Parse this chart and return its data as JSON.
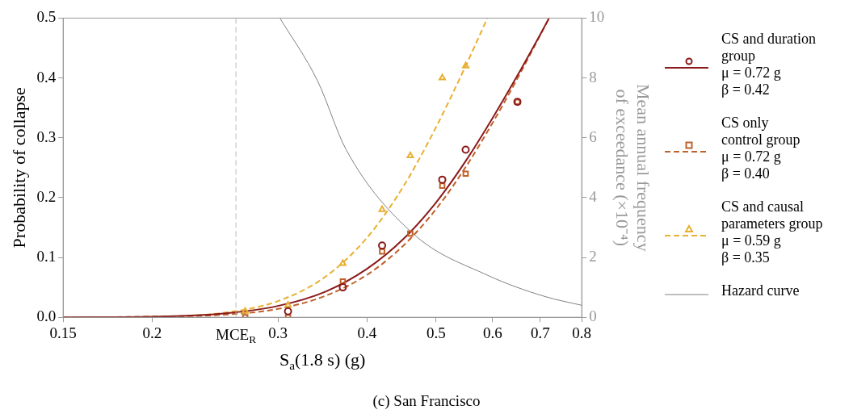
{
  "chart_data": {
    "type": "line",
    "xlabel": "S$_{a}$(1.8 s) (g)",
    "ylabel": "Probability of collapse",
    "y2label": "Mean annual frequency of exceedance (×10⁻⁴)",
    "log": "x",
    "xlim": [
      0.15,
      0.8
    ],
    "xticks": [
      0.15,
      0.2,
      0.3,
      0.4,
      0.5,
      0.6,
      0.7,
      0.8
    ],
    "ylim": [
      0,
      0.5
    ],
    "yticks": [
      {
        "value": 0,
        "label": "0.0"
      },
      0.1,
      0.2,
      0.3,
      0.4,
      0.5
    ],
    "y2lim": [
      0,
      10
    ],
    "y2ticks": [
      0,
      2,
      4,
      6,
      8,
      10
    ],
    "grid": false,
    "legend": "right",
    "annotations": [
      "(c) San Francisco"
    ],
    "ref_lines": [
      {
        "axis": "x",
        "value": 0.262,
        "label": "MCE$_{R}$",
        "color": "#bbbbbb",
        "line_style": "dashed"
      }
    ],
    "series": [
      {
        "name": "CS and duration\ngroup\nμ = 0.72 g\nβ = 0.42",
        "color": "#8b1a1a",
        "line_style": "solid",
        "marker": "none",
        "x": [
          0.15,
          0.2,
          0.25,
          0.3,
          0.35,
          0.4,
          0.45,
          0.5,
          0.55,
          0.6,
          0.65,
          0.7,
          0.72
        ],
        "values": [
          0,
          0.001,
          0.006,
          0.019,
          0.043,
          0.081,
          0.131,
          0.192,
          0.261,
          0.333,
          0.404,
          0.473,
          0.5
        ]
      },
      {
        "type": "scatter",
        "color": "#8b1a1a",
        "marker": "circle",
        "x": [
          0.31,
          0.37,
          0.42,
          0.51,
          0.55,
          0.65
        ],
        "values": [
          0.01,
          0.05,
          0.12,
          0.23,
          0.28,
          0.36
        ]
      },
      {
        "name": "CS only\ncontrol group\nμ = 0.72 g\nβ = 0.40",
        "color": "#c0602a",
        "line_style": "dashed",
        "marker": "none",
        "x": [
          0.15,
          0.2,
          0.25,
          0.3,
          0.35,
          0.4,
          0.45,
          0.5,
          0.55,
          0.6,
          0.65,
          0.7,
          0.72
        ],
        "values": [
          0,
          0.001,
          0.004,
          0.014,
          0.036,
          0.071,
          0.12,
          0.181,
          0.251,
          0.325,
          0.399,
          0.472,
          0.5
        ]
      },
      {
        "type": "scatter",
        "color": "#c0602a",
        "marker": "square",
        "x": [
          0.27,
          0.31,
          0.37,
          0.42,
          0.46,
          0.51,
          0.55,
          0.65
        ],
        "values": [
          0,
          0,
          0.06,
          0.11,
          0.14,
          0.22,
          0.24,
          0.36
        ]
      },
      {
        "name": "CS and causal\nparameters group\nμ = 0.59 g\nβ = 0.35",
        "color": "#e8b030",
        "line_style": "dashed",
        "marker": "none",
        "x": [
          0.15,
          0.2,
          0.25,
          0.3,
          0.35,
          0.4,
          0.45,
          0.5,
          0.55,
          0.59
        ],
        "values": [
          0,
          0.001,
          0.007,
          0.027,
          0.068,
          0.133,
          0.219,
          0.318,
          0.42,
          0.5
        ]
      },
      {
        "type": "scatter",
        "color": "#e8b030",
        "marker": "triangle",
        "x": [
          0.27,
          0.31,
          0.37,
          0.42,
          0.46,
          0.51,
          0.55
        ],
        "values": [
          0.01,
          0.02,
          0.09,
          0.18,
          0.27,
          0.4,
          0.42
        ]
      },
      {
        "name": "Hazard curve",
        "axis": "y2",
        "color": "#808080",
        "line_style": "solid",
        "marker": "none",
        "x": [
          0.302,
          0.341,
          0.374,
          0.464,
          0.591,
          0.709,
          0.8
        ],
        "values": [
          10,
          7.9,
          5.6,
          2.8,
          1.4,
          0.7,
          0.4
        ]
      }
    ]
  }
}
